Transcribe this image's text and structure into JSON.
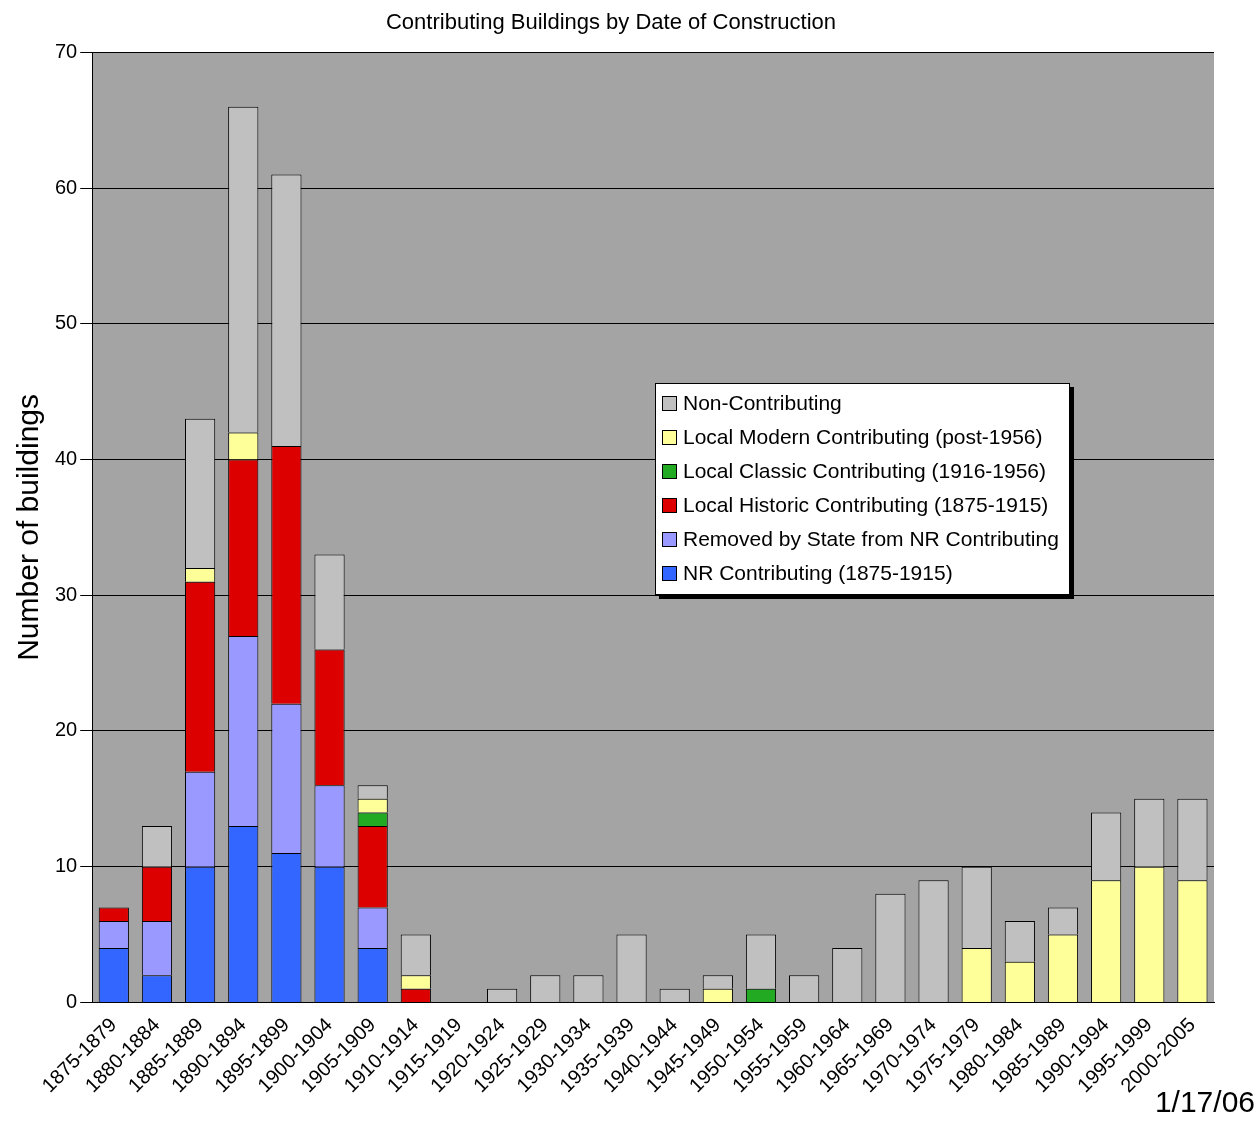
{
  "chart_data": {
    "type": "bar",
    "title": "Contributing Buildings by Date of Construction",
    "ylabel": "Number of buildings",
    "categories": [
      "1875-1879",
      "1880-1884",
      "1885-1889",
      "1890-1894",
      "1895-1899",
      "1900-1904",
      "1905-1909",
      "1910-1914",
      "1915-1919",
      "1920-1924",
      "1925-1929",
      "1930-1934",
      "1935-1939",
      "1940-1944",
      "1945-1949",
      "1950-1954",
      "1955-1959",
      "1960-1964",
      "1965-1969",
      "1970-1974",
      "1975-1979",
      "1980-1984",
      "1985-1989",
      "1990-1994",
      "1995-1999",
      "2000-2005"
    ],
    "stacked": true,
    "series": [
      {
        "name": "NR Contributing (1875-1915)",
        "color": "#3366ff",
        "values": [
          4,
          2,
          10,
          13,
          11,
          10,
          4,
          0,
          0,
          0,
          0,
          0,
          0,
          0,
          0,
          0,
          0,
          0,
          0,
          0,
          0,
          0,
          0,
          0,
          0,
          0
        ]
      },
      {
        "name": "Removed by State from NR Contributing",
        "color": "#9999ff",
        "values": [
          2,
          4,
          7,
          14,
          11,
          6,
          3,
          0,
          0,
          0,
          0,
          0,
          0,
          0,
          0,
          0,
          0,
          0,
          0,
          0,
          0,
          0,
          0,
          0,
          0,
          0
        ]
      },
      {
        "name": "Local Historic Contributing (1875-1915)",
        "color": "#dd0000",
        "values": [
          1,
          4,
          14,
          13,
          19,
          10,
          6,
          1,
          0,
          0,
          0,
          0,
          0,
          0,
          0,
          0,
          0,
          0,
          0,
          0,
          0,
          0,
          0,
          0,
          0,
          0
        ]
      },
      {
        "name": "Local Classic Contributing (1916-1956)",
        "color": "#22aa22",
        "values": [
          0,
          0,
          0,
          0,
          0,
          0,
          1,
          0,
          0,
          0,
          0,
          0,
          0,
          0,
          0,
          1,
          0,
          0,
          0,
          0,
          0,
          0,
          0,
          0,
          0,
          0
        ]
      },
      {
        "name": "Local Modern Contributing (post-1956)",
        "color": "#ffff99",
        "values": [
          0,
          0,
          1,
          2,
          0,
          0,
          1,
          1,
          0,
          0,
          0,
          0,
          0,
          0,
          1,
          0,
          0,
          0,
          0,
          0,
          4,
          3,
          5,
          9,
          10,
          9
        ]
      },
      {
        "name": "Non-Contributing",
        "color": "#c0c0c0",
        "values": [
          0,
          3,
          11,
          24,
          20,
          7,
          1,
          3,
          0,
          1,
          2,
          2,
          5,
          1,
          1,
          4,
          2,
          4,
          8,
          9,
          6,
          3,
          2,
          5,
          5,
          6
        ]
      }
    ],
    "ylim": [
      0,
      70
    ],
    "yticks": [
      0,
      10,
      20,
      30,
      40,
      50,
      60,
      70
    ],
    "grid": "y",
    "legend": "right",
    "annotations": [
      "1/17/06"
    ]
  }
}
